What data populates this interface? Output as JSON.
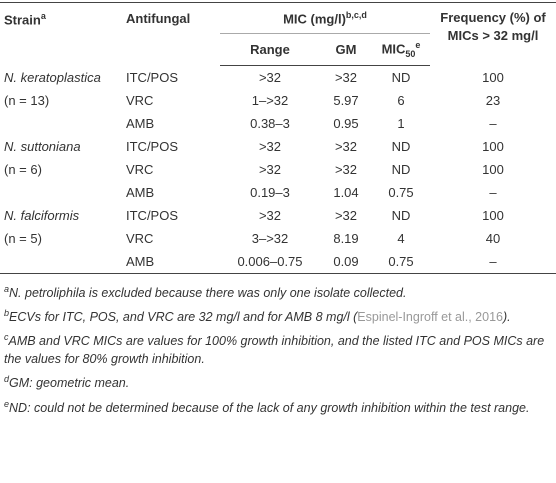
{
  "table": {
    "header": {
      "strain": {
        "text": "Strain",
        "sup": "a"
      },
      "antifungal": "Antifungal",
      "mic": {
        "text": "MIC (mg/l)",
        "sup": "b,c,d"
      },
      "frequency": [
        "Frequency (%) of",
        "MICs > 32 mg/l"
      ],
      "range": "Range",
      "gm": "GM",
      "mic50": {
        "text": "MIC",
        "sub": "50",
        "sup": "e"
      }
    },
    "rows": [
      [
        "N. keratoplastica",
        "ITC/POS",
        ">32",
        ">32",
        "ND",
        "100"
      ],
      [
        "(n = 13)",
        "VRC",
        "1–>32",
        "5.97",
        "6",
        "23"
      ],
      [
        null,
        "AMB",
        "0.38–3",
        "0.95",
        "1",
        "–"
      ],
      [
        "N. suttoniana",
        "ITC/POS",
        ">32",
        ">32",
        "ND",
        "100"
      ],
      [
        "(n = 6)",
        "VRC",
        ">32",
        ">32",
        "ND",
        "100"
      ],
      [
        null,
        "AMB",
        "0.19–3",
        "1.04",
        "0.75",
        "–"
      ],
      [
        "N. falciformis",
        "ITC/POS",
        ">32",
        ">32",
        "ND",
        "100"
      ],
      [
        "(n = 5)",
        "VRC",
        "3–>32",
        "8.19",
        "4",
        "40"
      ],
      [
        null,
        "AMB",
        "0.006–0.75",
        "0.09",
        "0.75",
        "–"
      ]
    ]
  },
  "footnotes": [
    {
      "mark": "a",
      "text": "N. petroliphila is excluded because there was only one isolate collected."
    },
    {
      "mark": "b",
      "text": "ECVs for ITC, POS, and VRC are 32 mg/l and for AMB 8 mg/l (",
      "cite": "Espinel-Ingroff et al., 2016",
      "end": ")."
    },
    {
      "mark": "c",
      "text": "AMB and VRC MICs are values for 100% growth inhibition, and the listed ITC and POS MICs are the values for 80% growth inhibition."
    },
    {
      "mark": "d",
      "text": "GM: geometric mean."
    },
    {
      "mark": "e",
      "text": "ND: could not be determined because of the lack of any growth inhibition within the test range."
    }
  ]
}
